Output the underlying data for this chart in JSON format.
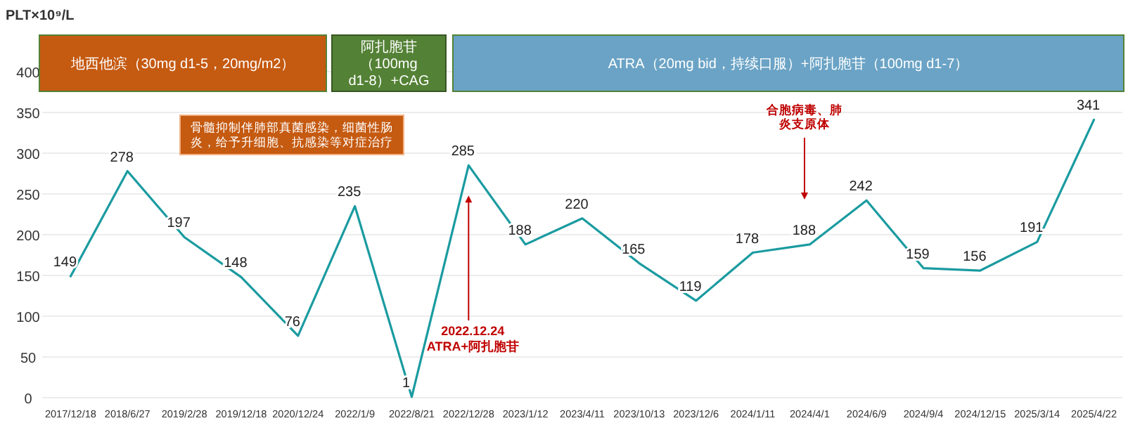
{
  "chart_data": {
    "type": "line",
    "ylabel": "PLT×10⁹/L",
    "categories": [
      "2017/12/18",
      "2018/6/27",
      "2019/2/28",
      "2019/12/18",
      "2020/12/24",
      "2022/1/9",
      "2022/8/21",
      "2022/12/28",
      "2023/1/12",
      "2023/4/11",
      "2023/10/13",
      "2023/12/6",
      "2024/1/11",
      "2024/4/1",
      "2024/6/9",
      "2024/9/4",
      "2024/12/15",
      "2025/3/14",
      "2025/4/22"
    ],
    "series": [
      {
        "color": "#1a9ba0",
        "values": [
          149,
          278,
          197,
          148,
          76,
          235,
          1,
          285,
          188,
          220,
          165,
          119,
          178,
          188,
          242,
          159,
          156,
          191,
          341
        ]
      }
    ],
    "ylim": [
      0,
      400
    ],
    "yticks": [
      0,
      50,
      100,
      150,
      200,
      250,
      300,
      350,
      400
    ],
    "grid": "y",
    "data_labels": true,
    "marker": "none",
    "line_style": "solid",
    "annotations": [
      "地西他滨（30mg d1-5，20mg/m2）",
      "阿扎胞苷（100mg d1-8）+CAG",
      "ATRA（20mg bid，持续口服）+阿扎胞苷（100mg d1-7）",
      "骨髓抑制伴肺部真菌感染，细菌性肠炎，给予升细胞、抗感染等对症治疗",
      {
        "text": "2022.12.24\nATRA+阿扎胞苷",
        "x": "2022/12/28",
        "y": 248
      },
      "合胞病毒、肺炎支原体"
    ]
  }
}
